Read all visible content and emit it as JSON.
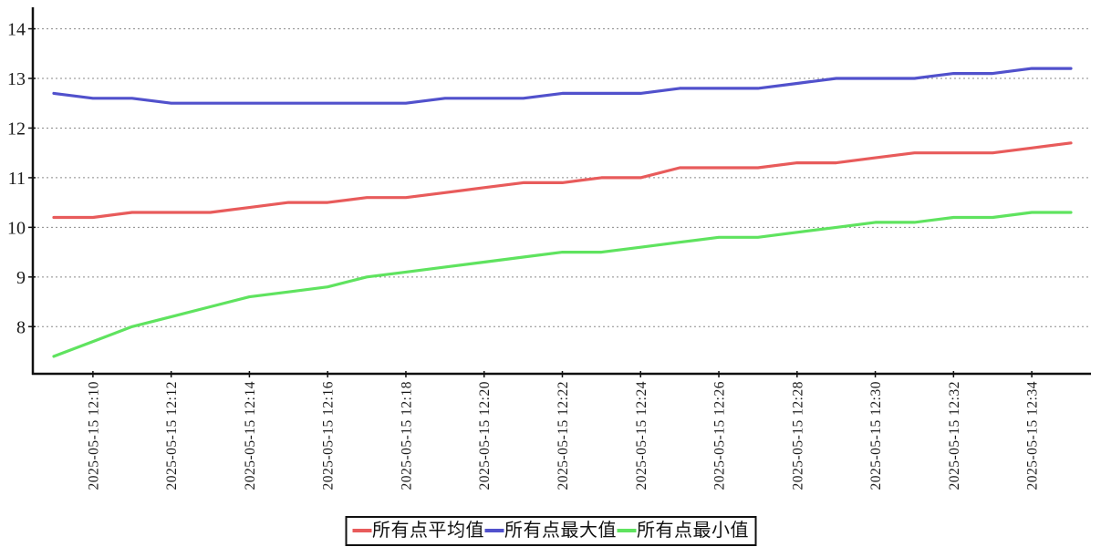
{
  "chart_data": {
    "type": "line",
    "title": "",
    "date_prefix": "2025-05-15",
    "x_times": [
      "12:09",
      "12:10",
      "12:11",
      "12:12",
      "12:13",
      "12:14",
      "12:15",
      "12:16",
      "12:17",
      "12:18",
      "12:19",
      "12:20",
      "12:21",
      "12:22",
      "12:23",
      "12:24",
      "12:25",
      "12:26",
      "12:27",
      "12:28",
      "12:29",
      "12:30",
      "12:31",
      "12:32",
      "12:33",
      "12:34",
      "12:35"
    ],
    "x_tick_times": [
      "12:10",
      "12:12",
      "12:14",
      "12:16",
      "12:18",
      "12:20",
      "12:22",
      "12:24",
      "12:26",
      "12:28",
      "12:30",
      "12:32",
      "12:34"
    ],
    "xlabel": "",
    "ylabel": "",
    "yticks": [
      8,
      9,
      10,
      11,
      12,
      13,
      14
    ],
    "ylim": [
      7.05,
      14.45
    ],
    "grid": "horizontal-dotted",
    "legend_position": "bottom-center",
    "series": [
      {
        "name": "所有点平均值",
        "color": "#e85b5b",
        "values": [
          10.2,
          10.2,
          10.3,
          10.3,
          10.3,
          10.4,
          10.5,
          10.5,
          10.6,
          10.6,
          10.7,
          10.8,
          10.9,
          10.9,
          11.0,
          11.0,
          11.2,
          11.2,
          11.2,
          11.3,
          11.3,
          11.4,
          11.5,
          11.5,
          11.5,
          11.6,
          11.7
        ]
      },
      {
        "name": "所有点最大值",
        "color": "#5151cc",
        "values": [
          12.7,
          12.6,
          12.6,
          12.5,
          12.5,
          12.5,
          12.5,
          12.5,
          12.5,
          12.5,
          12.6,
          12.6,
          12.6,
          12.7,
          12.7,
          12.7,
          12.8,
          12.8,
          12.8,
          12.9,
          13.0,
          13.0,
          13.0,
          13.1,
          13.1,
          13.2,
          13.2
        ]
      },
      {
        "name": "所有点最小值",
        "color": "#5fe35f",
        "values": [
          7.4,
          7.7,
          8.0,
          8.2,
          8.4,
          8.6,
          8.7,
          8.8,
          9.0,
          9.1,
          9.2,
          9.3,
          9.4,
          9.5,
          9.5,
          9.6,
          9.7,
          9.8,
          9.8,
          9.9,
          10.0,
          10.1,
          10.1,
          10.2,
          10.2,
          10.3,
          10.3
        ]
      }
    ],
    "axis_color": "#111111",
    "gridline_color": "#8a8a8a",
    "tick_label_color": "#1a1a1a"
  }
}
